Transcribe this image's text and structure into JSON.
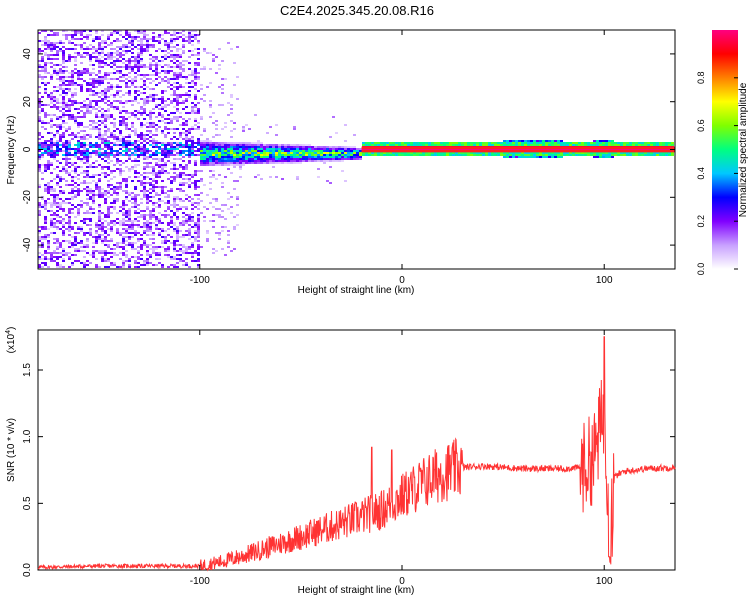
{
  "title": "C2E4.2025.345.20.08.R16",
  "chart_data": [
    {
      "type": "heatmap",
      "xlabel": "Height of straight line (km)",
      "ylabel": "Frequency (Hz)",
      "xlim": [
        -180,
        135
      ],
      "ylim": [
        -50,
        50
      ],
      "xticks": [
        -100,
        0,
        100
      ],
      "xtick_labels": [
        "-100",
        "0",
        "100"
      ],
      "yticks": [
        -40,
        -20,
        0,
        20,
        40
      ],
      "ytick_labels": [
        "-40",
        "-20",
        "0",
        "20",
        "40"
      ],
      "colorbar": {
        "label": "Normalized spectral amplitude",
        "range": [
          0,
          1
        ],
        "ticks": [
          0.0,
          0.2,
          0.4,
          0.6,
          0.8
        ],
        "tick_labels": [
          "0.0",
          "0.2",
          "0.4",
          "0.6",
          "0.8"
        ],
        "colors": [
          "#ffffff",
          "#c8a0ff",
          "#8000ff",
          "#0000ff",
          "#00c8ff",
          "#00ff80",
          "#80ff00",
          "#ffff00",
          "#ff8000",
          "#ff0000",
          "#ff0080"
        ]
      },
      "description_regions": [
        {
          "x_range": [
            -180,
            -100
          ],
          "f_range": [
            -50,
            50
          ],
          "level": "noise"
        },
        {
          "x_range": [
            -100,
            -20
          ],
          "f_range": [
            -8,
            5
          ],
          "level": "medium"
        },
        {
          "x_range": [
            -20,
            135
          ],
          "f_range": [
            -1,
            1
          ],
          "level": "high"
        }
      ]
    },
    {
      "type": "line",
      "xlabel": "Height of straight line (km)",
      "ylabel": "SNR (10 * v/v)",
      "yscale_label": "(x10",
      "yscale_exp": "4",
      "yscale_close": ")",
      "xlim": [
        -180,
        135
      ],
      "ylim": [
        0,
        1.8
      ],
      "xticks": [
        -100,
        0,
        100
      ],
      "xtick_labels": [
        "-100",
        "0",
        "100"
      ],
      "yticks": [
        0,
        0.5,
        1.0,
        1.5
      ],
      "ytick_labels": [
        "0.0",
        "0.5",
        "1.0",
        "1.5"
      ],
      "color": "#ff3333",
      "series": [
        {
          "name": "SNR",
          "x": [
            -180,
            -150,
            -120,
            -100,
            -90,
            -80,
            -70,
            -60,
            -50,
            -40,
            -30,
            -20,
            -10,
            0,
            10,
            20,
            30,
            40,
            50,
            60,
            70,
            80,
            90,
            95,
            100,
            103,
            105,
            110,
            120,
            135
          ],
          "y": [
            0.02,
            0.03,
            0.03,
            0.03,
            0.06,
            0.1,
            0.15,
            0.2,
            0.25,
            0.3,
            0.35,
            0.4,
            0.45,
            0.55,
            0.65,
            0.73,
            0.77,
            0.78,
            0.77,
            0.76,
            0.76,
            0.76,
            0.77,
            0.85,
            1.2,
            0.3,
            0.7,
            0.74,
            0.76,
            0.77
          ]
        }
      ],
      "spikes": [
        {
          "x": -15,
          "y": 0.92
        },
        {
          "x": -5,
          "y": 0.9
        },
        {
          "x": 100,
          "y": 1.75
        }
      ]
    }
  ]
}
